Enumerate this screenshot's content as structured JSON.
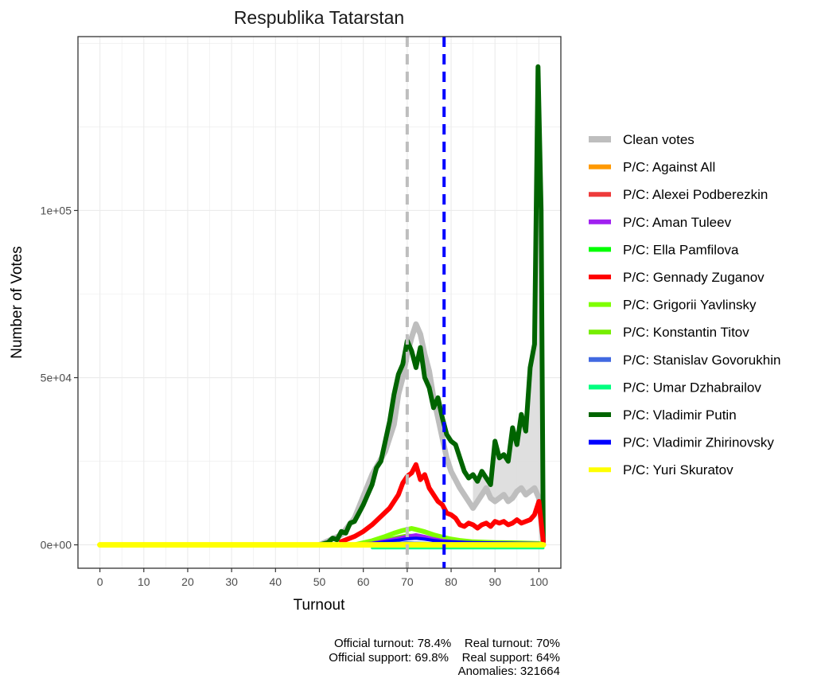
{
  "chart_data": {
    "type": "line",
    "title": "Respublika Tatarstan",
    "xlabel": "Turnout",
    "ylabel": "Number of Votes",
    "xlim": [
      -5,
      105
    ],
    "ylim": [
      -7000,
      152000
    ],
    "xticks": [
      0,
      10,
      20,
      30,
      40,
      50,
      60,
      70,
      80,
      90,
      100
    ],
    "yticks": [
      0,
      50000,
      100000
    ],
    "ytick_labels": [
      "0e+00",
      "5e+04",
      "1e+05"
    ],
    "grid": true,
    "legend_position": "right",
    "vlines": [
      {
        "x": 70,
        "color": "#bebebe",
        "style": "dashed",
        "label": "Real turnout"
      },
      {
        "x": 78.4,
        "color": "#0000ff",
        "style": "dashed",
        "label": "Official turnout"
      }
    ],
    "series": [
      {
        "name": "Clean votes",
        "color": "#bebebe",
        "width": 7,
        "x": [
          50,
          55,
          58,
          62,
          65,
          67,
          68,
          69,
          70,
          71,
          72,
          73,
          74,
          75,
          76,
          77,
          78,
          79,
          80,
          82,
          84,
          85,
          87,
          88,
          89,
          90,
          91,
          92,
          93,
          94,
          95,
          96,
          97,
          98,
          99,
          100,
          101
        ],
        "y": [
          0,
          3000,
          8000,
          21000,
          28000,
          36000,
          45000,
          50000,
          57000,
          62000,
          66000,
          63000,
          57000,
          52000,
          44000,
          38000,
          32000,
          26000,
          22000,
          17000,
          13000,
          11000,
          15000,
          17000,
          14000,
          13000,
          14000,
          15000,
          13000,
          14000,
          16000,
          17000,
          15000,
          16000,
          17000,
          14000,
          0
        ]
      },
      {
        "name": "P/C: Against All",
        "color": "#ff9900",
        "width": 3,
        "x": [
          55,
          60,
          65,
          70,
          75,
          80,
          85,
          90,
          95,
          100,
          101
        ],
        "y": [
          0,
          100,
          300,
          500,
          400,
          300,
          250,
          250,
          250,
          200,
          0
        ]
      },
      {
        "name": "P/C: Alexei Podberezkin",
        "color": "#ee3b3b",
        "width": 3,
        "x": [
          55,
          60,
          65,
          70,
          75,
          80,
          85,
          90,
          95,
          100,
          101
        ],
        "y": [
          0,
          50,
          100,
          200,
          150,
          100,
          80,
          80,
          80,
          60,
          0
        ]
      },
      {
        "name": "P/C: Aman Tuleev",
        "color": "#a020f0",
        "width": 4,
        "x": [
          58,
          62,
          65,
          68,
          70,
          72,
          74,
          76,
          78,
          80,
          85,
          90,
          95,
          100,
          101
        ],
        "y": [
          0,
          500,
          1200,
          2000,
          2600,
          3000,
          2500,
          1800,
          1300,
          1000,
          600,
          500,
          500,
          400,
          0
        ]
      },
      {
        "name": "P/C: Ella Pamfilova",
        "color": "#00ff00",
        "width": 3,
        "x": [
          58,
          62,
          65,
          70,
          75,
          80,
          85,
          90,
          95,
          100,
          101
        ],
        "y": [
          0,
          200,
          400,
          700,
          500,
          350,
          250,
          200,
          200,
          150,
          0
        ]
      },
      {
        "name": "P/C: Gennady Zuganov",
        "color": "#ff0000",
        "width": 6,
        "x": [
          55,
          58,
          60,
          62,
          64,
          66,
          68,
          69,
          70,
          71,
          72,
          73,
          74,
          75,
          76,
          77,
          78,
          79,
          80,
          81,
          82,
          83,
          84,
          85,
          86,
          87,
          88,
          89,
          90,
          91,
          92,
          93,
          94,
          95,
          96,
          97,
          98,
          99,
          100,
          101
        ],
        "y": [
          1000,
          2500,
          4000,
          6000,
          8500,
          11000,
          15000,
          18500,
          20500,
          21500,
          24000,
          19500,
          21000,
          17000,
          15000,
          13000,
          12000,
          9500,
          9000,
          8000,
          6000,
          5500,
          6500,
          6000,
          5000,
          6000,
          6500,
          5500,
          7000,
          6500,
          7000,
          6000,
          6500,
          7500,
          6500,
          7000,
          7500,
          9000,
          13000,
          1000
        ]
      },
      {
        "name": "P/C: Grigorii Yavlinsky",
        "color": "#7fff00",
        "width": 6,
        "x": [
          58,
          62,
          65,
          67,
          69,
          70,
          71,
          72,
          74,
          76,
          78,
          80,
          82,
          85,
          90,
          95,
          100,
          101
        ],
        "y": [
          0,
          1200,
          2500,
          3500,
          4300,
          4600,
          4900,
          4600,
          3900,
          3000,
          2300,
          1700,
          1300,
          900,
          700,
          600,
          400,
          0
        ]
      },
      {
        "name": "P/C: Konstantin Titov",
        "color": "#76ee00",
        "width": 4,
        "x": [
          58,
          62,
          65,
          68,
          70,
          72,
          75,
          78,
          80,
          85,
          90,
          95,
          100,
          101
        ],
        "y": [
          0,
          700,
          1500,
          2400,
          2900,
          2700,
          2000,
          1500,
          1100,
          700,
          500,
          500,
          400,
          0
        ]
      },
      {
        "name": "P/C: Stanislav Govorukhin",
        "color": "#4169e1",
        "width": 3,
        "x": [
          58,
          62,
          65,
          70,
          75,
          80,
          85,
          90,
          95,
          100,
          101
        ],
        "y": [
          0,
          200,
          400,
          700,
          500,
          350,
          250,
          200,
          200,
          150,
          0
        ]
      },
      {
        "name": "P/C: Umar Dzhabrailov",
        "color": "#00ff7f",
        "width": 3,
        "x": [
          62,
          101
        ],
        "y": [
          -1000,
          -1000
        ]
      },
      {
        "name": "P/C: Vladimir Putin",
        "color": "#006400",
        "width": 6,
        "x": [
          50,
          52,
          53,
          54,
          55,
          56,
          57,
          58,
          59,
          60,
          61,
          62,
          63,
          64,
          65,
          66,
          67,
          68,
          69,
          70,
          71,
          72,
          73,
          74,
          75,
          76,
          77,
          78,
          79,
          80,
          81,
          82,
          83,
          84,
          85,
          86,
          87,
          88,
          89,
          90,
          91,
          92,
          93,
          94,
          95,
          96,
          97,
          98,
          99,
          99.8,
          100.5,
          101
        ],
        "y": [
          0,
          700,
          2000,
          1500,
          4000,
          3500,
          6500,
          7000,
          9500,
          12000,
          15000,
          18000,
          23000,
          25000,
          31000,
          37000,
          45000,
          51000,
          54000,
          61000,
          58000,
          53000,
          59000,
          50000,
          47000,
          41000,
          44000,
          38000,
          33000,
          31000,
          30000,
          26000,
          22000,
          20000,
          21000,
          19000,
          22000,
          20000,
          18000,
          31000,
          26000,
          27000,
          25000,
          35000,
          30000,
          39000,
          34000,
          53000,
          60000,
          143000,
          100000,
          1000
        ]
      },
      {
        "name": "P/C: Vladimir Zhirinovsky",
        "color": "#0000ff",
        "width": 4,
        "x": [
          58,
          62,
          65,
          68,
          70,
          72,
          74,
          76,
          78,
          80,
          82,
          85,
          90,
          95,
          100,
          101
        ],
        "y": [
          0,
          400,
          900,
          1400,
          1800,
          2000,
          1700,
          1300,
          1000,
          900,
          800,
          700,
          600,
          500,
          400,
          0
        ]
      },
      {
        "name": "P/C: Yuri Skuratov",
        "color": "#ffff00",
        "width": 7,
        "x": [
          0,
          101
        ],
        "y": [
          0,
          0
        ]
      }
    ]
  },
  "footnote": {
    "line1": "Official turnout: 78.4%    Real turnout: 70%",
    "line2": "Official support: 69.8%    Real support: 64%",
    "line3": "Anomalies: 321664"
  }
}
